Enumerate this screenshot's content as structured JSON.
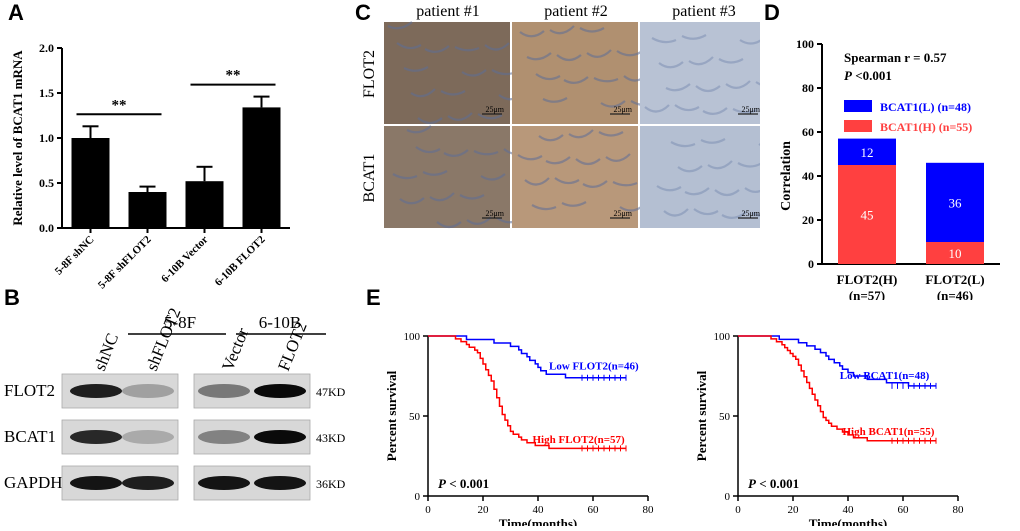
{
  "panel_labels": {
    "a": "A",
    "b": "B",
    "c": "C",
    "d": "D",
    "e": "E"
  },
  "chart_data": [
    {
      "id": "A",
      "type": "bar",
      "categories": [
        "5-8F shNC",
        "5-8F shFLOT2",
        "6-10B Vector",
        "6-10B FLOT2"
      ],
      "values": [
        1.0,
        0.4,
        0.52,
        1.34
      ],
      "errors": [
        0.13,
        0.06,
        0.16,
        0.12
      ],
      "ylabel": "Relative level of BCAT1 mRNA",
      "ylim": [
        0,
        2.0
      ],
      "yticks": [
        "0.0",
        "0.5",
        "1.0",
        "1.5",
        "2.0"
      ],
      "significance": [
        {
          "pair": [
            0,
            1
          ],
          "label": "**"
        },
        {
          "pair": [
            2,
            3
          ],
          "label": "**"
        }
      ],
      "colors": {
        "bar": "#000000"
      }
    },
    {
      "id": "D",
      "type": "bar",
      "stacked": true,
      "categories": [
        "FLOT2(H)\n(n=57)",
        "FLOT2(L)\n(n=46)"
      ],
      "category_lines": [
        [
          "FLOT2(H)",
          "(n=57)"
        ],
        [
          "FLOT2(L)",
          "(n=46)"
        ]
      ],
      "series": [
        {
          "name": "BCAT1(H) (n=55)",
          "values": [
            45,
            10
          ],
          "color": "#ff4040"
        },
        {
          "name": "BCAT1(L) (n=48)",
          "values": [
            12,
            36
          ],
          "color": "#0000ff"
        }
      ],
      "ylabel": "Correlation",
      "ylim": [
        0,
        100
      ],
      "yticks": [
        "0",
        "20",
        "40",
        "60",
        "80",
        "100"
      ],
      "annotation": {
        "line1": "Spearman  r = 0.57",
        "line2_italic": "P",
        "line2_rest": " <0.001"
      },
      "legend_order": [
        "BCAT1(L) (n=48)",
        "BCAT1(H) (n=55)"
      ]
    },
    {
      "id": "E1",
      "type": "line",
      "xlabel": "Time(months)",
      "ylabel": "Percent survival",
      "xlim": [
        0,
        80
      ],
      "ylim": [
        0,
        100
      ],
      "xticks": [
        "0",
        "20",
        "40",
        "60",
        "80"
      ],
      "yticks": [
        "0",
        "50",
        "100"
      ],
      "pvalue": {
        "italic": "P",
        "rest": " < 0.001"
      },
      "series": [
        {
          "name": "Low FLOT2(n=46)",
          "color": "#0000ff",
          "points": [
            [
              0,
              100
            ],
            [
              12,
              100
            ],
            [
              14,
              97.8
            ],
            [
              22,
              97.8
            ],
            [
              24,
              95.6
            ],
            [
              30,
              93.5
            ],
            [
              33,
              91.3
            ],
            [
              34,
              89.1
            ],
            [
              36,
              87
            ],
            [
              37,
              84.8
            ],
            [
              39,
              82.6
            ],
            [
              40,
              80.4
            ],
            [
              41,
              78.3
            ],
            [
              43,
              76.1
            ],
            [
              48,
              76.1
            ],
            [
              50,
              73.9
            ],
            [
              72,
              73.9
            ]
          ]
        },
        {
          "name": "High FLOT2(n=57)",
          "color": "#ff0000",
          "points": [
            [
              0,
              100
            ],
            [
              9,
              100
            ],
            [
              10,
              98.2
            ],
            [
              12,
              96.5
            ],
            [
              14,
              94.7
            ],
            [
              15,
              93
            ],
            [
              17,
              91.2
            ],
            [
              18,
              89.5
            ],
            [
              19,
              86
            ],
            [
              20,
              82.5
            ],
            [
              21,
              78.9
            ],
            [
              22,
              75.4
            ],
            [
              23,
              71.9
            ],
            [
              24,
              66.7
            ],
            [
              25,
              61.4
            ],
            [
              26,
              56.1
            ],
            [
              27,
              50.9
            ],
            [
              28,
              47.4
            ],
            [
              29,
              43.9
            ],
            [
              30,
              40.4
            ],
            [
              31,
              38.6
            ],
            [
              33,
              36.8
            ],
            [
              34,
              35.1
            ],
            [
              36,
              33.3
            ],
            [
              39,
              31.6
            ],
            [
              42,
              31.6
            ],
            [
              44,
              29.8
            ],
            [
              72,
              29.8
            ]
          ]
        }
      ]
    },
    {
      "id": "E2",
      "type": "line",
      "xlabel": "Time(months)",
      "ylabel": "Percent survival",
      "xlim": [
        0,
        80
      ],
      "ylim": [
        0,
        100
      ],
      "xticks": [
        "0",
        "20",
        "40",
        "60",
        "80"
      ],
      "yticks": [
        "0",
        "50",
        "100"
      ],
      "pvalue": {
        "italic": "P",
        "rest": " < 0.001"
      },
      "series": [
        {
          "name": "Low BCAT1(n=48)",
          "color": "#0000ff",
          "points": [
            [
              0,
              100
            ],
            [
              14,
              100
            ],
            [
              15,
              97.9
            ],
            [
              20,
              97.9
            ],
            [
              22,
              95.8
            ],
            [
              25,
              93.8
            ],
            [
              28,
              91.7
            ],
            [
              30,
              89.6
            ],
            [
              32,
              87.5
            ],
            [
              33,
              85.4
            ],
            [
              35,
              83.3
            ],
            [
              37,
              81.3
            ],
            [
              38,
              79.2
            ],
            [
              40,
              77.1
            ],
            [
              42,
              75
            ],
            [
              45,
              75
            ],
            [
              47,
              72.9
            ],
            [
              52,
              72.9
            ],
            [
              54,
              70.8
            ],
            [
              60,
              70.8
            ],
            [
              62,
              68.8
            ],
            [
              72,
              68.8
            ]
          ]
        },
        {
          "name": "High BCAT1(n=55)",
          "color": "#ff0000",
          "points": [
            [
              0,
              100
            ],
            [
              10,
              100
            ],
            [
              12,
              98.2
            ],
            [
              14,
              96.4
            ],
            [
              16,
              94.5
            ],
            [
              17,
              92.7
            ],
            [
              18,
              90.9
            ],
            [
              19,
              89.1
            ],
            [
              20,
              87.3
            ],
            [
              21,
              85.5
            ],
            [
              22,
              81.8
            ],
            [
              23,
              78.2
            ],
            [
              24,
              74.5
            ],
            [
              25,
              70.9
            ],
            [
              26,
              67.3
            ],
            [
              27,
              63.6
            ],
            [
              28,
              60
            ],
            [
              29,
              56.4
            ],
            [
              30,
              52.7
            ],
            [
              31,
              49.1
            ],
            [
              32,
              47.3
            ],
            [
              33,
              45.5
            ],
            [
              34,
              43.6
            ],
            [
              36,
              41.8
            ],
            [
              38,
              40
            ],
            [
              40,
              38.2
            ],
            [
              42,
              36.4
            ],
            [
              45,
              36.4
            ],
            [
              47,
              34.5
            ],
            [
              72,
              34.5
            ]
          ]
        }
      ]
    }
  ],
  "western_blot": {
    "group_labels": [
      "5-8F",
      "6-10B"
    ],
    "lane_labels": [
      "shNC",
      "shFLOT2",
      "Vector",
      "FLOT2"
    ],
    "rows": [
      {
        "name": "FLOT2",
        "kd": "47KD",
        "intensities": [
          0.9,
          0.25,
          0.45,
          1.0
        ]
      },
      {
        "name": "BCAT1",
        "kd": "43KD",
        "intensities": [
          0.85,
          0.2,
          0.4,
          1.0
        ]
      },
      {
        "name": "GAPDH",
        "kd": "36KD",
        "intensities": [
          0.95,
          0.9,
          0.95,
          0.95
        ]
      }
    ]
  },
  "ihc": {
    "columns": [
      "patient #1",
      "patient #2",
      "patient #3"
    ],
    "rows": [
      "FLOT2",
      "BCAT1"
    ],
    "scalebar": "25μm",
    "tones": [
      [
        "#7d6a5a",
        "#b09070",
        "#b8c2d4"
      ],
      [
        "#8a7868",
        "#b8987a",
        "#b4bfd2"
      ]
    ]
  }
}
